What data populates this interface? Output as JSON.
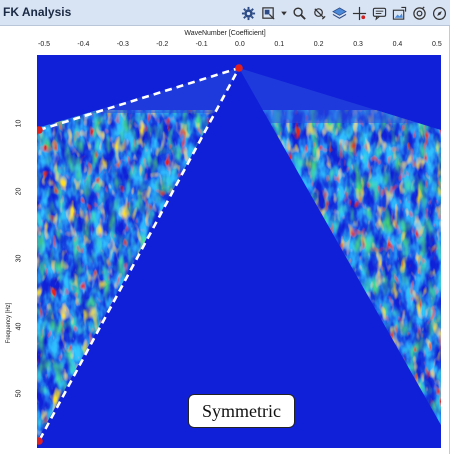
{
  "window": {
    "title": "FK Analysis"
  },
  "toolbar": {
    "icons": [
      "gear-icon",
      "display-mode-icon",
      "dropdown-arrow-icon",
      "zoom-icon",
      "pick-icon",
      "layers-icon",
      "crosshair-icon",
      "comment-icon",
      "export-image-icon",
      "snapshot-icon",
      "compass-icon"
    ]
  },
  "plot": {
    "xlabel": "WaveNumber [Coefficient]",
    "ylabel": "Frequency [Hz]",
    "x_ticks": [
      "-0.5",
      "-0.4",
      "-0.3",
      "-0.2",
      "-0.1",
      "0.0",
      "0.1",
      "0.2",
      "0.3",
      "0.4",
      "0.5"
    ],
    "y_ticks": [
      "10",
      "20",
      "30",
      "40",
      "50"
    ],
    "background_color": "#1020d8",
    "mask_line_color": "#ffffff",
    "marker_color": "#e02020"
  },
  "annotation": {
    "text": "Symmetric"
  }
}
